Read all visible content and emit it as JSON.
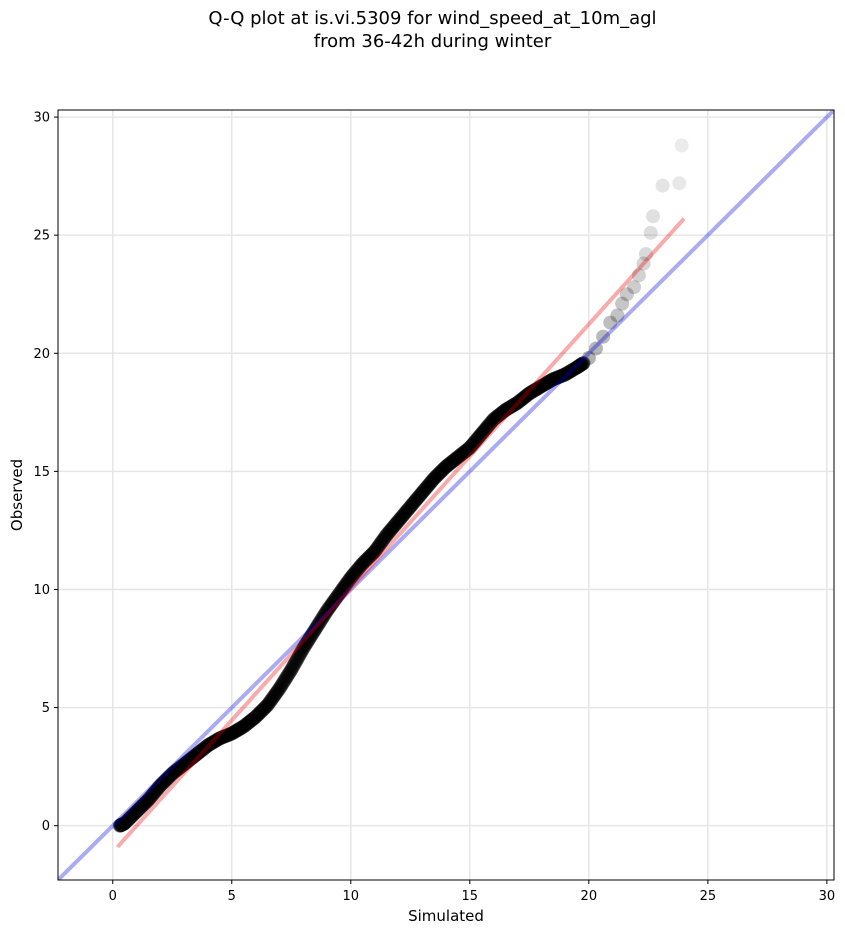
{
  "chart_data": {
    "type": "scatter",
    "title": "Q-Q plot at is.vi.5309 for wind_speed_at_10m_agl",
    "subtitle": "from 36-42h during winter",
    "xlabel": "Simulated",
    "ylabel": "Observed",
    "xlim": [
      -2.3,
      30.3
    ],
    "ylim": [
      -2.3,
      30.3
    ],
    "xticks": [
      0,
      5,
      10,
      15,
      20,
      25,
      30
    ],
    "yticks": [
      0,
      5,
      10,
      15,
      20,
      25,
      30
    ],
    "grid": true,
    "colors": {
      "points": "#000000",
      "identity_line": "#0000dd",
      "fit_line": "#ee0000",
      "grid": "#e6e6e6"
    },
    "identity_line": {
      "x": [
        -2.3,
        30.3
      ],
      "y": [
        -2.3,
        30.3
      ]
    },
    "fit_line": {
      "x": [
        0.2,
        24.0
      ],
      "y": [
        -0.9,
        25.7
      ]
    },
    "qq_curve": [
      [
        0.3,
        0.0
      ],
      [
        0.5,
        0.1
      ],
      [
        1.0,
        0.6
      ],
      [
        1.5,
        1.1
      ],
      [
        2.0,
        1.7
      ],
      [
        2.5,
        2.2
      ],
      [
        3.0,
        2.6
      ],
      [
        3.5,
        3.0
      ],
      [
        4.0,
        3.4
      ],
      [
        4.5,
        3.7
      ],
      [
        5.0,
        3.9
      ],
      [
        5.5,
        4.2
      ],
      [
        6.0,
        4.6
      ],
      [
        6.5,
        5.1
      ],
      [
        7.0,
        5.8
      ],
      [
        7.5,
        6.6
      ],
      [
        8.0,
        7.5
      ],
      [
        8.5,
        8.3
      ],
      [
        9.0,
        9.1
      ],
      [
        9.5,
        9.8
      ],
      [
        10.0,
        10.5
      ],
      [
        10.5,
        11.1
      ],
      [
        11.0,
        11.6
      ],
      [
        11.5,
        12.3
      ],
      [
        12.0,
        12.9
      ],
      [
        12.5,
        13.5
      ],
      [
        13.0,
        14.1
      ],
      [
        13.5,
        14.7
      ],
      [
        14.0,
        15.2
      ],
      [
        14.5,
        15.6
      ],
      [
        15.0,
        16.0
      ],
      [
        15.5,
        16.6
      ],
      [
        16.0,
        17.2
      ],
      [
        16.5,
        17.6
      ],
      [
        17.0,
        17.9
      ],
      [
        17.5,
        18.3
      ],
      [
        18.0,
        18.6
      ],
      [
        18.5,
        18.9
      ],
      [
        19.0,
        19.1
      ],
      [
        19.5,
        19.4
      ],
      [
        19.8,
        19.6
      ]
    ],
    "tail_points": [
      [
        20.0,
        19.8
      ],
      [
        20.3,
        20.2
      ],
      [
        20.6,
        20.7
      ],
      [
        20.9,
        21.3
      ],
      [
        21.2,
        21.6
      ],
      [
        21.4,
        22.1
      ],
      [
        21.6,
        22.5
      ],
      [
        21.9,
        22.8
      ],
      [
        22.1,
        23.3
      ],
      [
        22.3,
        23.8
      ],
      [
        22.4,
        24.2
      ],
      [
        22.6,
        25.1
      ],
      [
        22.7,
        25.8
      ],
      [
        23.1,
        27.1
      ],
      [
        23.8,
        27.2
      ],
      [
        23.9,
        28.8
      ]
    ]
  }
}
